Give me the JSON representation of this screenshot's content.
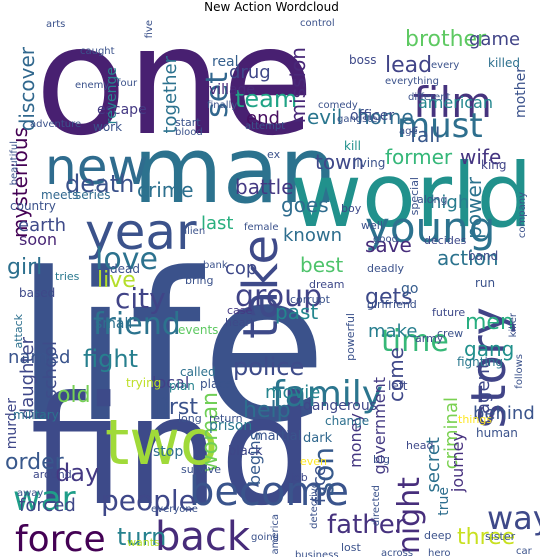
{
  "chart": {
    "title": "New Action Wordcloud"
  },
  "chart_data": {
    "type": "wordcloud",
    "title": "New Action Wordcloud",
    "words": [
      {
        "text": "life",
        "weight": 100
      },
      {
        "text": "one",
        "weight": 72
      },
      {
        "text": "find",
        "weight": 70
      },
      {
        "text": "man",
        "weight": 48
      },
      {
        "text": "world",
        "weight": 46
      },
      {
        "text": "two",
        "weight": 32
      },
      {
        "text": "new",
        "weight": 28
      },
      {
        "text": "year",
        "weight": 27
      },
      {
        "text": "young",
        "weight": 26
      },
      {
        "text": "story",
        "weight": 24
      },
      {
        "text": "film",
        "weight": 22
      },
      {
        "text": "take",
        "weight": 22
      },
      {
        "text": "must",
        "weight": 20
      },
      {
        "text": "become",
        "weight": 18
      },
      {
        "text": "family",
        "weight": 17
      },
      {
        "text": "back",
        "weight": 16
      },
      {
        "text": "love",
        "weight": 15
      },
      {
        "text": "friend",
        "weight": 15
      },
      {
        "text": "time",
        "weight": 15
      },
      {
        "text": "group",
        "weight": 15
      },
      {
        "text": "police",
        "weight": 14
      },
      {
        "text": "people",
        "weight": 14
      },
      {
        "text": "force",
        "weight": 14
      },
      {
        "text": "way",
        "weight": 14
      },
      {
        "text": "father",
        "weight": 13
      },
      {
        "text": "war",
        "weight": 13
      },
      {
        "text": "city",
        "weight": 13
      },
      {
        "text": "death",
        "weight": 12
      },
      {
        "text": "fight",
        "weight": 12
      },
      {
        "text": "brother",
        "weight": 12
      },
      {
        "text": "lead",
        "weight": 12
      },
      {
        "text": "team",
        "weight": 12
      },
      {
        "text": "help",
        "weight": 11
      },
      {
        "text": "turn",
        "weight": 11
      },
      {
        "text": "live",
        "weight": 11
      },
      {
        "text": "three",
        "weight": 11
      },
      {
        "text": "night",
        "weight": 11
      },
      {
        "text": "son",
        "weight": 11
      },
      {
        "text": "girl",
        "weight": 10
      },
      {
        "text": "battle",
        "weight": 10
      },
      {
        "text": "town",
        "weight": 10
      },
      {
        "text": "set",
        "weight": 10
      },
      {
        "text": "home",
        "weight": 10
      },
      {
        "text": "evil",
        "weight": 10
      },
      {
        "text": "woman",
        "weight": 10
      },
      {
        "text": "gang",
        "weight": 10
      },
      {
        "text": "men",
        "weight": 10
      },
      {
        "text": "mysterious",
        "weight": 10
      },
      {
        "text": "old",
        "weight": 10
      },
      {
        "text": "first",
        "weight": 10
      },
      {
        "text": "day",
        "weight": 10
      },
      {
        "text": "order",
        "weight": 9
      },
      {
        "text": "mission",
        "weight": 9
      },
      {
        "text": "save",
        "weight": 9
      },
      {
        "text": "gets",
        "weight": 9
      },
      {
        "text": "crime",
        "weight": 9
      },
      {
        "text": "former",
        "weight": 9
      },
      {
        "text": "fall",
        "weight": 9
      },
      {
        "text": "wife",
        "weight": 9
      },
      {
        "text": "action",
        "weight": 9
      },
      {
        "text": "known",
        "weight": 9
      },
      {
        "text": "goes",
        "weight": 9
      },
      {
        "text": "best",
        "weight": 8
      },
      {
        "text": "cop",
        "weight": 8
      },
      {
        "text": "past",
        "weight": 8
      },
      {
        "text": "make",
        "weight": 8
      },
      {
        "text": "movie",
        "weight": 8
      },
      {
        "text": "come",
        "weight": 8
      },
      {
        "text": "high",
        "weight": 8
      },
      {
        "text": "power",
        "weight": 8
      },
      {
        "text": "game",
        "weight": 8
      },
      {
        "text": "american",
        "weight": 8
      },
      {
        "text": "drug",
        "weight": 8
      },
      {
        "text": "discover",
        "weight": 8
      },
      {
        "text": "together",
        "weight": 8
      },
      {
        "text": "daughter",
        "weight": 8
      },
      {
        "text": "school",
        "weight": 8
      },
      {
        "text": "named",
        "weight": 7
      },
      {
        "text": "earth",
        "weight": 7
      },
      {
        "text": "last",
        "weight": 7
      },
      {
        "text": "end",
        "weight": 7
      },
      {
        "text": "money",
        "weight": 7
      },
      {
        "text": "secret",
        "weight": 7
      },
      {
        "text": "criminal",
        "weight": 7
      },
      {
        "text": "behind",
        "weight": 7
      },
      {
        "text": "government",
        "weight": 7
      },
      {
        "text": "face",
        "weight": 7
      },
      {
        "text": "agent",
        "weight": 7
      },
      {
        "text": "forced",
        "weight": 7
      },
      {
        "text": "journey",
        "weight": 6
      },
      {
        "text": "true",
        "weight": 6
      },
      {
        "text": "begins",
        "weight": 6
      },
      {
        "text": "soon",
        "weight": 6
      },
      {
        "text": "murder",
        "weight": 6
      },
      {
        "text": "small",
        "weight": 6
      },
      {
        "text": "local",
        "weight": 6
      },
      {
        "text": "prison",
        "weight": 6
      },
      {
        "text": "stop",
        "weight": 6
      },
      {
        "text": "village",
        "weight": 6
      },
      {
        "text": "real",
        "weight": 6
      },
      {
        "text": "mother",
        "weight": 6
      },
      {
        "text": "officer",
        "weight": 6
      },
      {
        "text": "go",
        "weight": 6
      },
      {
        "text": "dangerous",
        "weight": 5
      },
      {
        "text": "change",
        "weight": 5
      },
      {
        "text": "martial",
        "weight": 5
      },
      {
        "text": "dark",
        "weight": 5
      },
      {
        "text": "black",
        "weight": 5
      },
      {
        "text": "military",
        "weight": 5
      },
      {
        "text": "escape",
        "weight": 5
      },
      {
        "text": "revenge",
        "weight": 5
      },
      {
        "text": "work",
        "weight": 5
      },
      {
        "text": "country",
        "weight": 5
      },
      {
        "text": "meets",
        "weight": 5
      },
      {
        "text": "series",
        "weight": 5
      },
      {
        "text": "boss",
        "weight": 5
      },
      {
        "text": "killed",
        "weight": 5
      },
      {
        "text": "kill",
        "weight": 5
      },
      {
        "text": "king",
        "weight": 5
      },
      {
        "text": "living",
        "weight": 5
      },
      {
        "text": "fighting",
        "weight": 5
      },
      {
        "text": "band",
        "weight": 5
      },
      {
        "text": "run",
        "weight": 5
      },
      {
        "text": "human",
        "weight": 5
      },
      {
        "text": "left",
        "weight": 5
      },
      {
        "text": "plan",
        "weight": 5
      },
      {
        "text": "place",
        "weight": 5
      },
      {
        "text": "called",
        "weight": 5
      },
      {
        "text": "trying",
        "weight": 4
      },
      {
        "text": "attack",
        "weight": 4
      },
      {
        "text": "based",
        "weight": 4
      },
      {
        "text": "tries",
        "weight": 4
      },
      {
        "text": "dead",
        "weight": 4
      },
      {
        "text": "bring",
        "weight": 4
      },
      {
        "text": "case",
        "weight": 4
      },
      {
        "text": "heart",
        "weight": 4
      },
      {
        "text": "events",
        "weight": 4
      },
      {
        "text": "return",
        "weight": 4
      },
      {
        "text": "long",
        "weight": 4
      },
      {
        "text": "survive",
        "weight": 4
      },
      {
        "text": "around",
        "weight": 4
      },
      {
        "text": "away",
        "weight": 4
      },
      {
        "text": "wants",
        "weight": 4
      },
      {
        "text": "everyone",
        "weight": 4
      },
      {
        "text": "going",
        "weight": 4
      },
      {
        "text": "job",
        "weight": 4
      },
      {
        "text": "even",
        "weight": 4
      },
      {
        "text": "detective",
        "weight": 4
      },
      {
        "text": "directed",
        "weight": 4
      },
      {
        "text": "america",
        "weight": 4
      },
      {
        "text": "lost",
        "weight": 4
      },
      {
        "text": "deep",
        "weight": 4
      },
      {
        "text": "sister",
        "weight": 4
      },
      {
        "text": "things",
        "weight": 4
      },
      {
        "text": "big",
        "weight": 4
      },
      {
        "text": "head",
        "weight": 4
      },
      {
        "text": "army",
        "weight": 4
      },
      {
        "text": "crew",
        "weight": 4
      },
      {
        "text": "future",
        "weight": 4
      },
      {
        "text": "girlfriend",
        "weight": 4
      },
      {
        "text": "powerful",
        "weight": 4
      },
      {
        "text": "deadly",
        "weight": 4
      },
      {
        "text": "dream",
        "weight": 4
      },
      {
        "text": "corrupt",
        "weight": 4
      },
      {
        "text": "decides",
        "weight": 4
      },
      {
        "text": "good",
        "weight": 4
      },
      {
        "text": "well",
        "weight": 4
      },
      {
        "text": "boy",
        "weight": 4
      },
      {
        "text": "special",
        "weight": 4
      },
      {
        "text": "along",
        "weight": 4
      },
      {
        "text": "ex",
        "weight": 4
      },
      {
        "text": "blood",
        "weight": 3
      },
      {
        "text": "finally",
        "weight": 3
      },
      {
        "text": "attempt",
        "weight": 3
      },
      {
        "text": "start",
        "weight": 3
      },
      {
        "text": "comedy",
        "weight": 3
      },
      {
        "text": "gangster",
        "weight": 3
      },
      {
        "text": "everything",
        "weight": 3
      },
      {
        "text": "different",
        "weight": 3
      },
      {
        "text": "arts",
        "weight": 3
      },
      {
        "text": "five",
        "weight": 3
      },
      {
        "text": "control",
        "weight": 3
      },
      {
        "text": "caught",
        "weight": 3
      },
      {
        "text": "enemy",
        "weight": 3
      },
      {
        "text": "four",
        "weight": 3
      },
      {
        "text": "adventure",
        "weight": 3
      },
      {
        "text": "beautiful",
        "weight": 3
      },
      {
        "text": "alien",
        "weight": 3
      },
      {
        "text": "female",
        "weight": 3
      },
      {
        "text": "bank",
        "weight": 3
      },
      {
        "text": "killer",
        "weight": 3
      },
      {
        "text": "follows",
        "weight": 3
      },
      {
        "text": "company",
        "weight": 3
      },
      {
        "text": "across",
        "weight": 3
      },
      {
        "text": "business",
        "weight": 3
      },
      {
        "text": "hero",
        "weight": 3
      },
      {
        "text": "car",
        "weight": 3
      },
      {
        "text": "age",
        "weight": 3
      },
      {
        "text": "every",
        "weight": 3
      }
    ]
  }
}
